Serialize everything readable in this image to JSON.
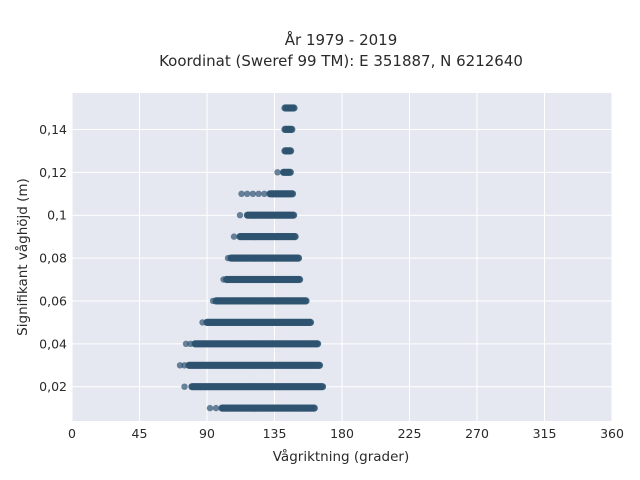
{
  "chart_data": {
    "type": "scatter",
    "title_line1": "År 1979 - 2019",
    "title_line2": "Koordinat (Sweref 99 TM): E 351887, N 6212640",
    "xlabel": "Vågriktning (grader)",
    "ylabel": "Signifikant våghöjd (m)",
    "xlim": [
      0,
      360
    ],
    "ylim": [
      0.004,
      0.157
    ],
    "xticks": [
      0,
      45,
      90,
      135,
      180,
      225,
      270,
      315,
      360
    ],
    "xtick_labels": [
      "0",
      "45",
      "90",
      "135",
      "180",
      "225",
      "270",
      "315",
      "360"
    ],
    "yticks": [
      0.02,
      0.04,
      0.06,
      0.08,
      0.1,
      0.12,
      0.14
    ],
    "ytick_labels": [
      "0,02",
      "0,04",
      "0,06",
      "0,08",
      "0,1",
      "0,12",
      "0,14"
    ],
    "grid": true,
    "legend": "none",
    "plot_background": "#e5e8f0",
    "marker_color": "#2e5370",
    "series": [
      {
        "bands": [
          {
            "y": 0.01,
            "x_min": 92,
            "x_dense_start": 100,
            "x_max": 162
          },
          {
            "y": 0.02,
            "x_min": 75,
            "x_dense_start": 80,
            "x_max": 167
          },
          {
            "y": 0.03,
            "x_min": 72,
            "x_dense_start": 78,
            "x_max": 165
          },
          {
            "y": 0.04,
            "x_min": 76,
            "x_dense_start": 82,
            "x_max": 164
          },
          {
            "y": 0.05,
            "x_min": 87,
            "x_dense_start": 90,
            "x_max": 159
          },
          {
            "y": 0.06,
            "x_min": 94,
            "x_dense_start": 96,
            "x_max": 156
          },
          {
            "y": 0.07,
            "x_min": 101,
            "x_dense_start": 103,
            "x_max": 152
          },
          {
            "y": 0.08,
            "x_min": 104,
            "x_dense_start": 106,
            "x_max": 151
          },
          {
            "y": 0.09,
            "x_min": 108,
            "x_dense_start": 112,
            "x_max": 149
          },
          {
            "y": 0.1,
            "x_min": 112,
            "x_dense_start": 117,
            "x_max": 148
          },
          {
            "y": 0.11,
            "x_min": 113,
            "x_dense_start": 132,
            "x_max": 147
          },
          {
            "y": 0.12,
            "x_min": 137,
            "x_dense_start": 141,
            "x_max": 146
          },
          {
            "y": 0.13,
            "x_min": 142,
            "x_dense_start": 142,
            "x_max": 146
          },
          {
            "y": 0.14,
            "x_min": 142,
            "x_dense_start": 142,
            "x_max": 147
          },
          {
            "y": 0.15,
            "x_min": 142,
            "x_dense_start": 142,
            "x_max": 148
          }
        ]
      }
    ]
  }
}
